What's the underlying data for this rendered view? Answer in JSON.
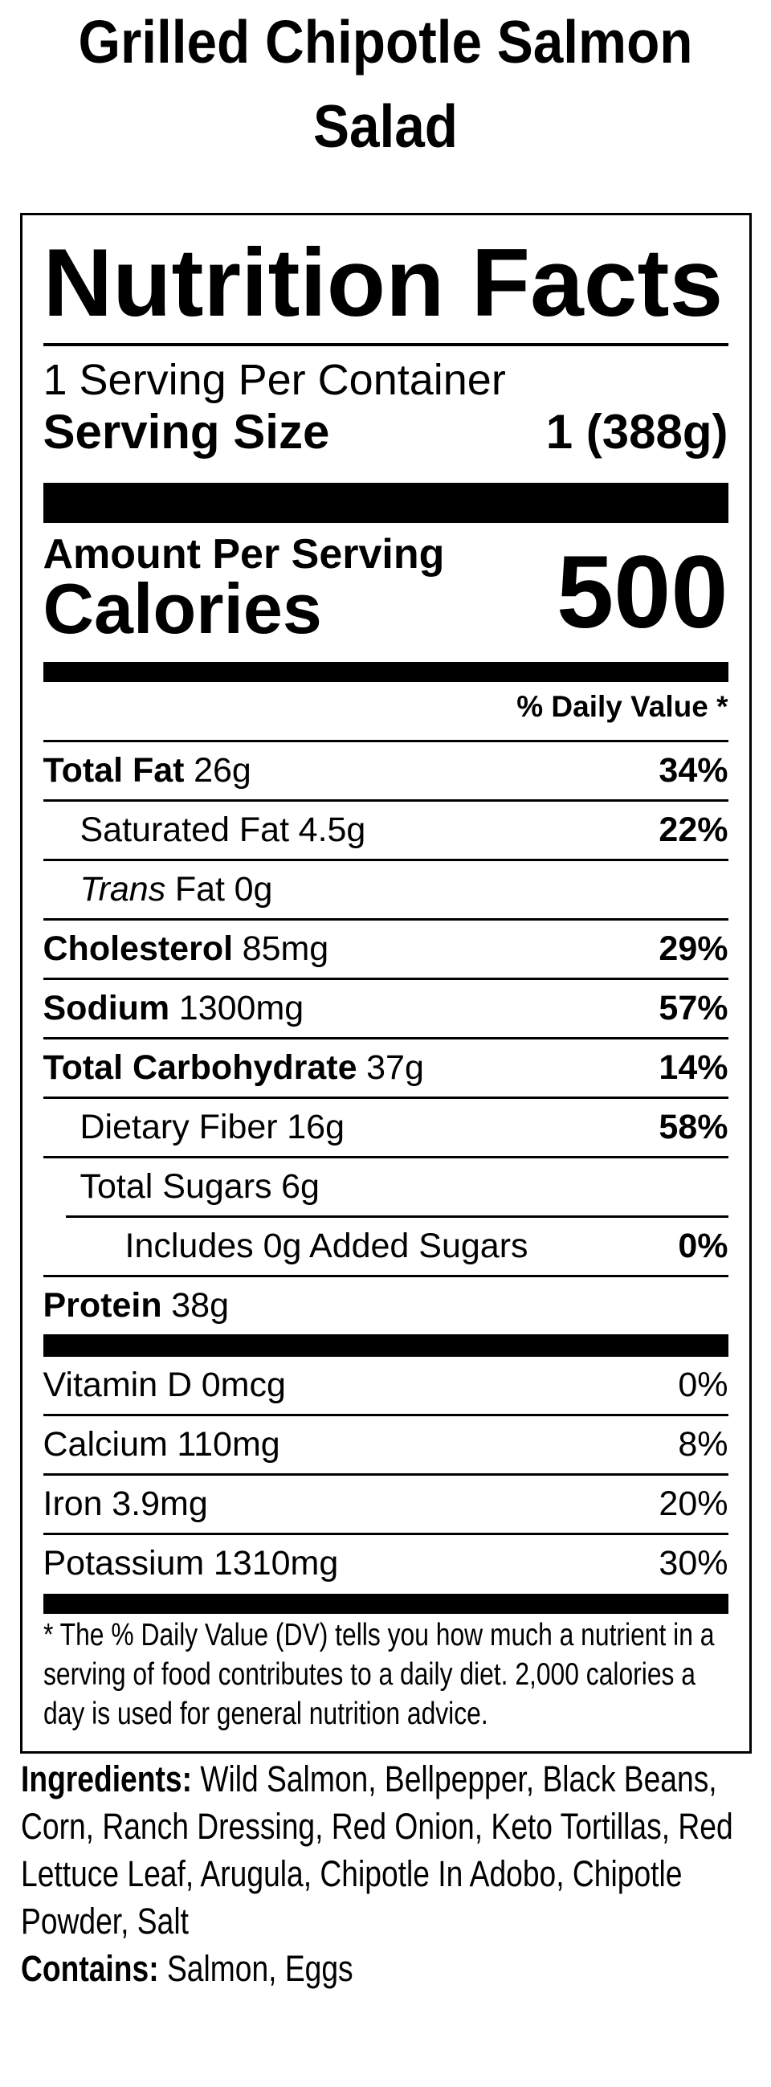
{
  "page": {
    "background": "#ffffff",
    "text_color": "#000000"
  },
  "title": "Grilled Chipotle Salmon Salad",
  "nutrition_label": {
    "heading": "Nutrition Facts",
    "servings_per_container": "1 Serving Per Container",
    "serving_size": {
      "label": "Serving Size",
      "value": "1 (388g)"
    },
    "amount_per_serving": "Amount Per Serving",
    "calories": {
      "label": "Calories",
      "value": "500"
    },
    "daily_value_header": "% Daily Value *",
    "nutrients": [
      {
        "name": "Total Fat",
        "amount": "26g",
        "daily_value": "34%"
      },
      {
        "name": "Saturated Fat",
        "amount": "4.5g",
        "daily_value": "22%"
      },
      {
        "name_italic": "Trans",
        "name": "Fat",
        "amount": "0g",
        "daily_value": ""
      },
      {
        "name": "Cholesterol",
        "amount": "85mg",
        "daily_value": "29%"
      },
      {
        "name": "Sodium",
        "amount": "1300mg",
        "daily_value": "57%"
      },
      {
        "name": "Total Carbohydrate",
        "amount": "37g",
        "daily_value": "14%"
      },
      {
        "name": "Dietary Fiber",
        "amount": "16g",
        "daily_value": "58%"
      },
      {
        "name": "Total Sugars",
        "amount": "6g",
        "daily_value": ""
      },
      {
        "name": "Includes 0g Added Sugars",
        "amount": "",
        "daily_value": "0%"
      },
      {
        "name": "Protein",
        "amount": "38g",
        "daily_value": ""
      }
    ],
    "micronutrients": [
      {
        "name": "Vitamin D",
        "amount": "0mcg",
        "daily_value": "0%"
      },
      {
        "name": "Calcium",
        "amount": "110mg",
        "daily_value": "8%"
      },
      {
        "name": "Iron",
        "amount": "3.9mg",
        "daily_value": "20%"
      },
      {
        "name": "Potassium",
        "amount": "1310mg",
        "daily_value": "30%"
      }
    ],
    "footnote": "* The % Daily Value (DV) tells you how much a nutrient in a serving of food contributes to a daily diet. 2,000 calories a day is used for general nutrition advice."
  },
  "ingredients": {
    "label": "Ingredients:",
    "value": "Wild Salmon, Bellpepper, Black Beans, Corn, Ranch Dressing, Red Onion, Keto Tortillas, Red Lettuce Leaf, Arugula, Chipotle In Adobo, Chipotle Powder, Salt"
  },
  "contains": {
    "label": "Contains:",
    "value": "Salmon, Eggs"
  }
}
